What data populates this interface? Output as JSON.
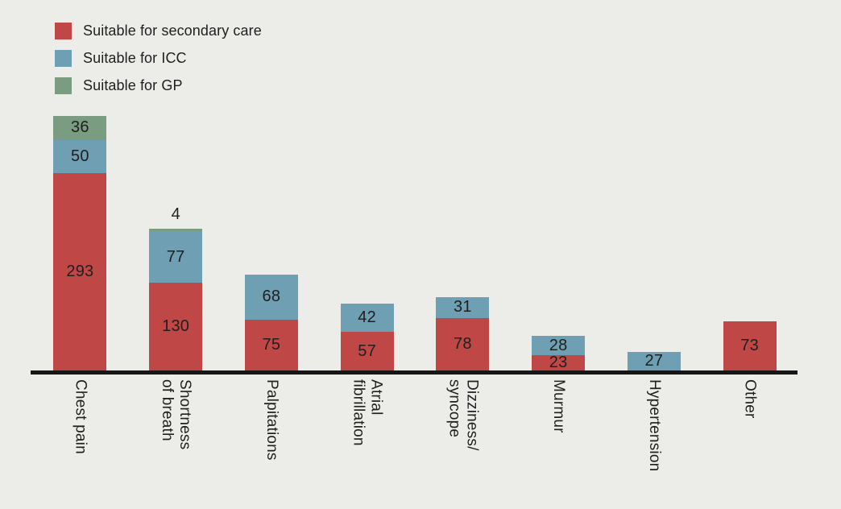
{
  "page": {
    "background": "#ecece8",
    "text_color": "#1f1f1f"
  },
  "legend": {
    "items": [
      {
        "label": "Suitable for secondary care",
        "color": "#bf4847"
      },
      {
        "label": "Suitable for ICC",
        "color": "#6e9fb2"
      },
      {
        "label": "Suitable for GP",
        "color": "#7a9c81"
      }
    ]
  },
  "chart_data": {
    "type": "bar",
    "stacked": true,
    "title": "",
    "xlabel": "",
    "ylabel": "",
    "grid": false,
    "legend_position": "top-left",
    "axis_line_color": "#161616",
    "categories": [
      "Chest pain",
      "Shortness\nof breath",
      "Palpitations",
      "Atrial\nfibrillation",
      "Dizziness/\nsyncope",
      "Murmur",
      "Hypertension",
      "Other"
    ],
    "series": [
      {
        "name": "Suitable for secondary care",
        "color": "#bf4847",
        "values": [
          293,
          130,
          75,
          57,
          78,
          23,
          0,
          73
        ]
      },
      {
        "name": "Suitable for ICC",
        "color": "#6e9fb2",
        "values": [
          50,
          77,
          68,
          42,
          31,
          28,
          27,
          0
        ]
      },
      {
        "name": "Suitable for GP",
        "color": "#7a9c81",
        "values": [
          36,
          4,
          0,
          0,
          0,
          0,
          0,
          0
        ]
      }
    ],
    "value_labels": true
  }
}
